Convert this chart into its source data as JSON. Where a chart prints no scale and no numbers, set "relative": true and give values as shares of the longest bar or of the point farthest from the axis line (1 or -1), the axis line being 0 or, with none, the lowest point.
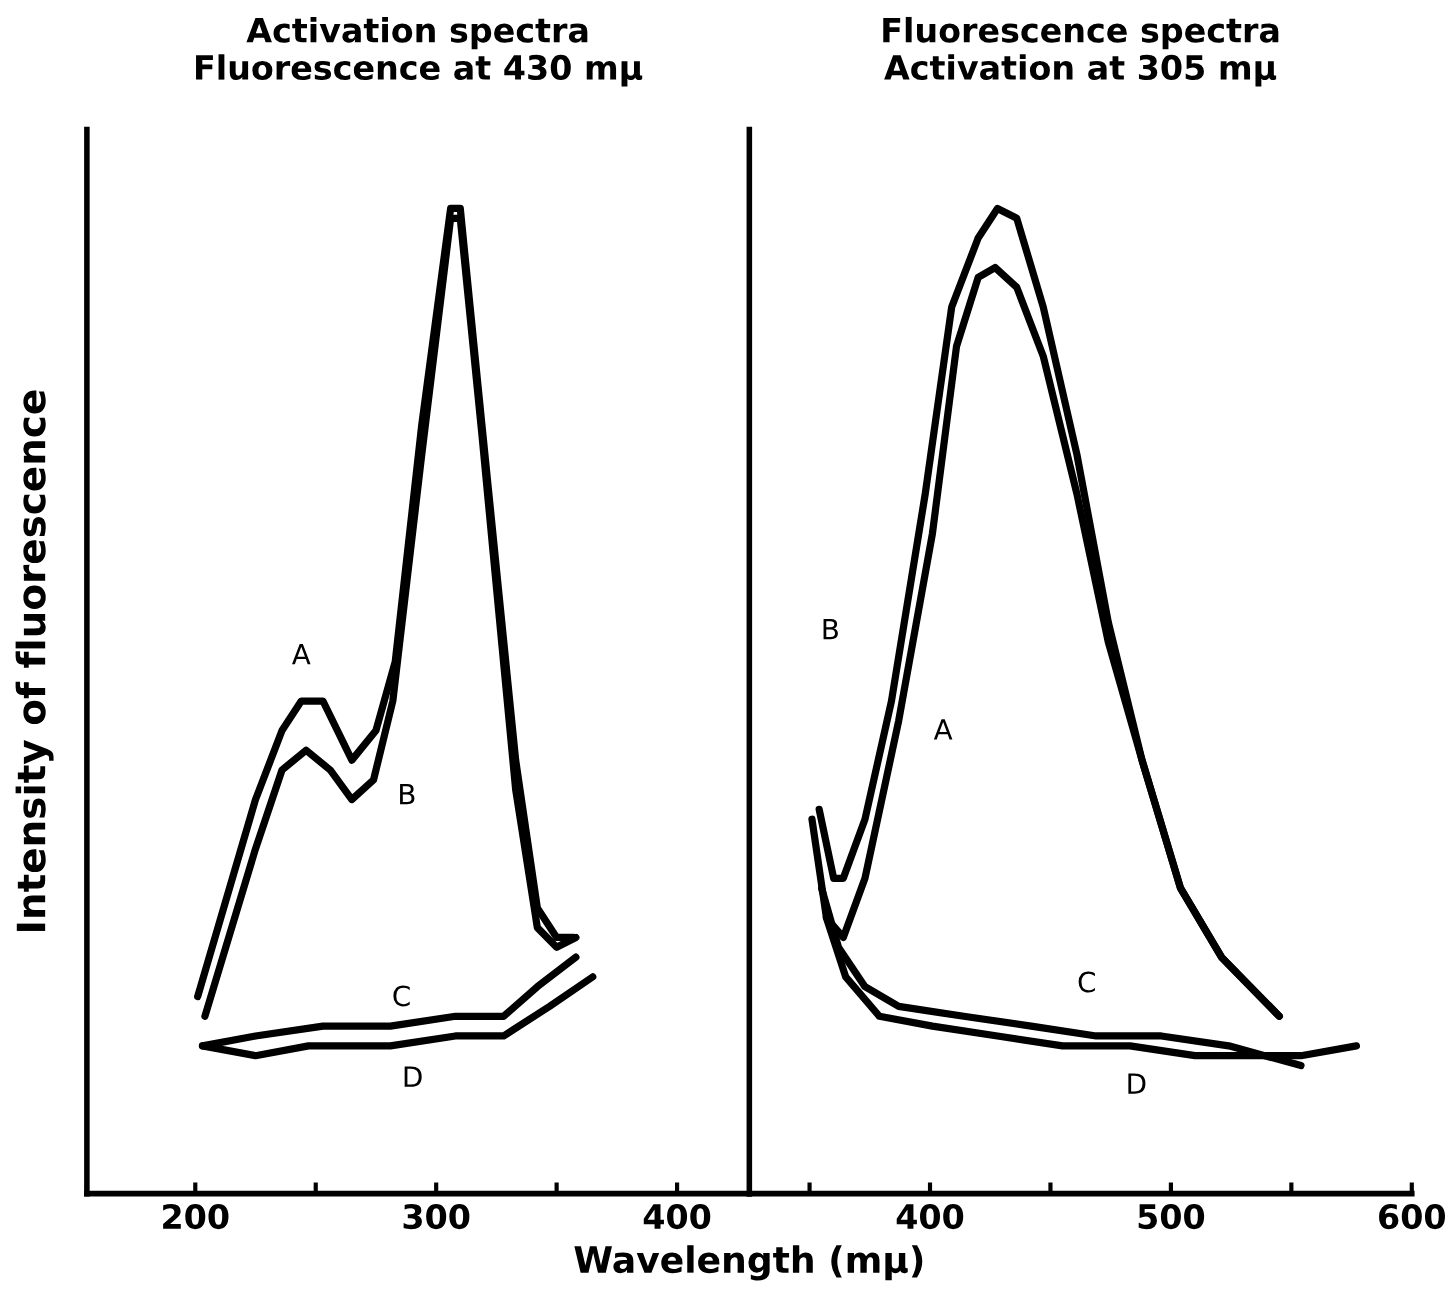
{
  "chart_data": [
    {
      "type": "line",
      "title": "Activation spectra\nFluorescence at 430 mμ",
      "ylabel": "Intensity of fluorescence",
      "xlabel": "Wavelength (mμ)",
      "relative": true,
      "tick_labels": "x",
      "xlim": [
        155,
        430
      ],
      "xticks": [
        200,
        {
          "value": 250,
          "label": null
        },
        300,
        {
          "value": 350,
          "label": null
        },
        400
      ],
      "series": [
        {
          "name": "A",
          "color": "#000000",
          "x": [
            201,
            225,
            236,
            244,
            253,
            265,
            275,
            283,
            294,
            306,
            310,
            319,
            333,
            342,
            350,
            357
          ],
          "values": [
            0.2,
            0.4,
            0.47,
            0.5,
            0.5,
            0.44,
            0.47,
            0.54,
            0.78,
            1.0,
            1.0,
            0.78,
            0.44,
            0.29,
            0.26,
            0.26
          ]
        },
        {
          "name": "B",
          "color": "#000000",
          "x": [
            204,
            225,
            236,
            246,
            256,
            265,
            274,
            282,
            294,
            306,
            310,
            319,
            333,
            342,
            350,
            358
          ],
          "values": [
            0.18,
            0.35,
            0.43,
            0.45,
            0.43,
            0.4,
            0.42,
            0.5,
            0.75,
            0.99,
            0.99,
            0.77,
            0.41,
            0.27,
            0.25,
            0.26
          ]
        },
        {
          "name": "C",
          "color": "#000000",
          "x": [
            203,
            225,
            253,
            281,
            308,
            328,
            342,
            358
          ],
          "values": [
            0.15,
            0.16,
            0.17,
            0.17,
            0.18,
            0.18,
            0.21,
            0.24
          ]
        },
        {
          "name": "D",
          "color": "#000000",
          "x": [
            203,
            225,
            247,
            281,
            308,
            328,
            347,
            365
          ],
          "values": [
            0.15,
            0.14,
            0.15,
            0.15,
            0.16,
            0.16,
            0.19,
            0.22
          ]
        }
      ]
    },
    {
      "type": "line",
      "title": "Fluorescence spectra\nActivation at 305 mμ",
      "relative": true,
      "tick_labels": "x",
      "xlim": [
        325,
        600
      ],
      "xticks": [
        {
          "value": 350,
          "label": null
        },
        400,
        {
          "value": 450,
          "label": null
        },
        500,
        {
          "value": 550,
          "label": null
        },
        600
      ],
      "series": [
        {
          "name": "B",
          "color": "#000000",
          "x": [
            354,
            360,
            364,
            373,
            384,
            398,
            409,
            420,
            428,
            436,
            447,
            461,
            474,
            488,
            504,
            521,
            545
          ],
          "values": [
            0.39,
            0.32,
            0.32,
            0.38,
            0.5,
            0.71,
            0.9,
            0.97,
            1.0,
            0.99,
            0.9,
            0.75,
            0.58,
            0.44,
            0.31,
            0.24,
            0.18
          ]
        },
        {
          "name": "A",
          "color": "#000000",
          "x": [
            351,
            357,
            364,
            373,
            387,
            401,
            411,
            420,
            427,
            436,
            447,
            461,
            474,
            488,
            504,
            521,
            545
          ],
          "values": [
            0.38,
            0.28,
            0.26,
            0.32,
            0.48,
            0.67,
            0.86,
            0.93,
            0.94,
            0.92,
            0.85,
            0.71,
            0.56,
            0.44,
            0.31,
            0.24,
            0.18
          ]
        },
        {
          "name": "C",
          "color": "#000000",
          "x": [
            355,
            362,
            373,
            387,
            414,
            442,
            469,
            496,
            524,
            554
          ],
          "values": [
            0.31,
            0.25,
            0.21,
            0.19,
            0.18,
            0.17,
            0.16,
            0.16,
            0.15,
            0.13
          ]
        },
        {
          "name": "D",
          "color": "#000000",
          "x": [
            357,
            365,
            379,
            401,
            428,
            455,
            483,
            510,
            537,
            554,
            577
          ],
          "values": [
            0.28,
            0.22,
            0.18,
            0.17,
            0.16,
            0.15,
            0.15,
            0.14,
            0.14,
            0.14,
            0.15
          ]
        }
      ]
    }
  ]
}
